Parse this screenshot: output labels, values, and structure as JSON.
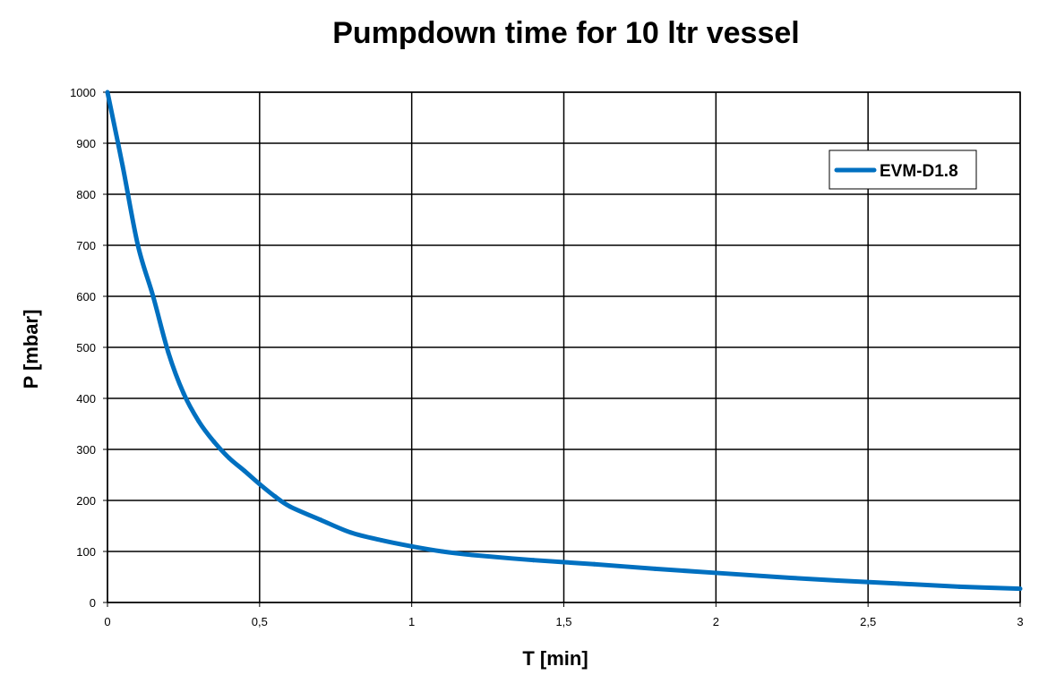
{
  "chart_data": {
    "type": "line",
    "title": "Pumpdown time for 10 ltr vessel",
    "xlabel": "T [min]",
    "ylabel": "P [mbar]",
    "xlim": [
      0,
      3
    ],
    "ylim": [
      0,
      1000
    ],
    "x_ticks": [
      0,
      0.5,
      1,
      1.5,
      2,
      2.5,
      3
    ],
    "x_tick_labels": [
      "0",
      "0,5",
      "1",
      "1,5",
      "2",
      "2,5",
      "3"
    ],
    "y_ticks": [
      0,
      100,
      200,
      300,
      400,
      500,
      600,
      700,
      800,
      900,
      1000
    ],
    "y_tick_labels": [
      "0",
      "100",
      "200",
      "300",
      "400",
      "500",
      "600",
      "700",
      "800",
      "900",
      "1000"
    ],
    "grid": true,
    "legend_position": "top-right",
    "series": [
      {
        "name": "EVM-D1.8",
        "color": "#0070c0",
        "x": [
          0,
          0.05,
          0.1,
          0.15,
          0.2,
          0.25,
          0.3,
          0.35,
          0.4,
          0.45,
          0.5,
          0.55,
          0.6,
          0.7,
          0.8,
          0.9,
          1.0,
          1.1,
          1.2,
          1.4,
          1.6,
          1.8,
          2.0,
          2.2,
          2.4,
          2.6,
          2.8,
          3.0
        ],
        "y": [
          1000,
          855,
          700,
          600,
          490,
          410,
          355,
          315,
          283,
          258,
          232,
          208,
          188,
          162,
          137,
          122,
          110,
          100,
          93,
          83,
          75,
          66,
          58,
          50,
          43,
          37,
          31,
          27
        ]
      }
    ]
  }
}
